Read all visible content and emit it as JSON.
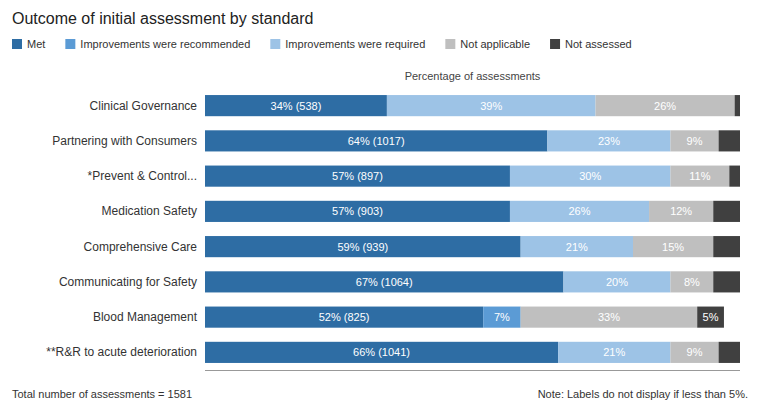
{
  "chart_data": {
    "type": "bar",
    "orientation": "horizontal",
    "stacked": true,
    "data_labels": true,
    "tick_labels": "y",
    "title": "Outcome of initial  assessment by standard",
    "xlabel": "Percentage of assessments",
    "categories": [
      "Clinical Governance",
      "Partnering with Consumers",
      "*Prevent & Control...",
      "Medication Safety",
      "Comprehensive Care",
      "Communicating for Safety",
      "Blood Management",
      "**R&R to acute deterioration"
    ],
    "series": [
      {
        "name": "Met",
        "color": "#2E6DA4",
        "values": [
          34,
          64,
          57,
          57,
          59,
          67,
          52,
          66
        ],
        "value_labels": [
          "34% (538)",
          "64% (1017)",
          "57% (897)",
          "57% (903)",
          "59% (939)",
          "67% (1064)",
          "52% (825)",
          "66% (1041)"
        ]
      },
      {
        "name": "Improvements were recommended",
        "color": "#5B9BD5",
        "values": [
          0,
          0,
          0,
          0,
          0,
          0,
          7,
          0
        ],
        "value_labels": [
          null,
          null,
          null,
          null,
          null,
          null,
          "7%",
          null
        ]
      },
      {
        "name": "Improvements were required",
        "color": "#9DC3E6",
        "values": [
          39,
          23,
          30,
          26,
          21,
          20,
          0,
          21
        ],
        "value_labels": [
          "39%",
          "23%",
          "30%",
          "26%",
          "21%",
          "20%",
          null,
          "21%"
        ]
      },
      {
        "name": "Not applicable",
        "color": "#BFBFBF",
        "values": [
          26,
          9,
          11,
          12,
          15,
          8,
          33,
          9
        ],
        "value_labels": [
          "26%",
          "9%",
          "11%",
          "12%",
          "15%",
          "8%",
          "33%",
          "9%"
        ]
      },
      {
        "name": "Not assessed",
        "color": "#404040",
        "values": [
          1,
          4,
          2,
          5,
          5,
          5,
          5,
          4
        ],
        "value_labels": [
          null,
          null,
          null,
          null,
          null,
          null,
          "5%",
          null
        ]
      }
    ],
    "xlim": [
      0,
      100
    ],
    "annotations": [
      "Total number of assessments = 1581",
      "Note: Labels do not display if less than 5%."
    ]
  }
}
